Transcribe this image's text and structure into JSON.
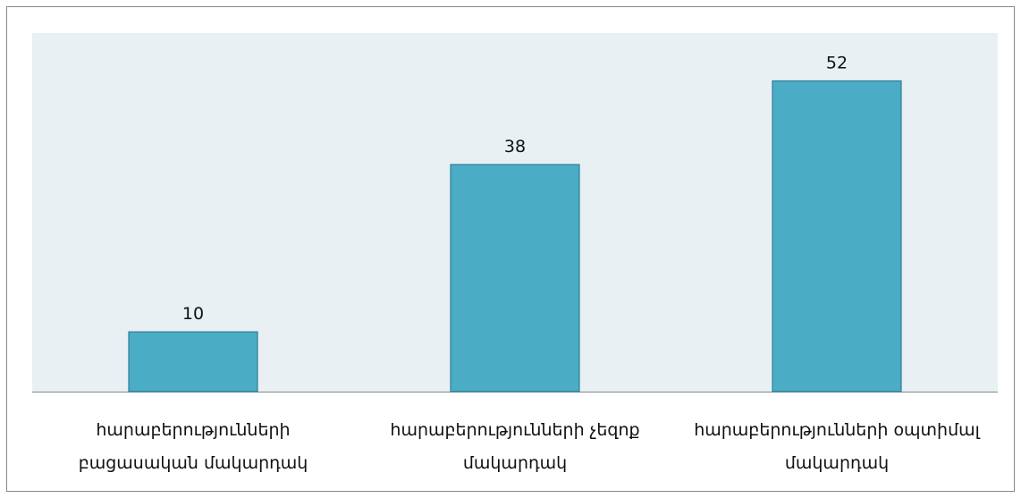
{
  "chart_data": {
    "type": "bar",
    "categories": [
      "հարաբերությունների բացասական մակարդակ",
      "հարաբերությունների չեզոք մակարդակ",
      "հարաբերությունների օպտիմալ մակարդակ"
    ],
    "values": [
      10,
      38,
      52
    ],
    "color": "#4bacc6",
    "ylim": [
      0,
      60
    ]
  }
}
